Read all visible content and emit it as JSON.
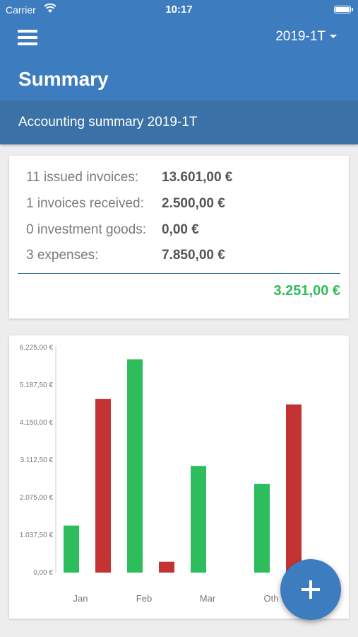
{
  "status_bar": {
    "carrier": "Carrier",
    "time": "10:17"
  },
  "app_bar": {
    "period": "2019-1T",
    "title": "Summary"
  },
  "subheader": {
    "text": "Accounting summary 2019-1T"
  },
  "summary": {
    "rows": [
      {
        "label": "11 issued invoices:",
        "amount": "13.601,00 €"
      },
      {
        "label": "1 invoices received:",
        "amount": "2.500,00 €"
      },
      {
        "label": "0 investment goods:",
        "amount": "0,00 €"
      },
      {
        "label": "3 expenses:",
        "amount": "7.850,00 €"
      }
    ],
    "total": "3.251,00 €"
  },
  "colors": {
    "income": "#2ebd5c",
    "expense": "#c43333",
    "accent": "#3e7cc0"
  },
  "chart_data": {
    "type": "bar",
    "categories": [
      "Jan",
      "Feb",
      "Mar",
      "Oth"
    ],
    "series": [
      {
        "color": "#2ebd5c",
        "values": [
          1300,
          5900,
          2950,
          2450
        ]
      },
      {
        "color": "#c43333",
        "values": [
          4800,
          300,
          0,
          4650
        ]
      }
    ],
    "yticks": [
      "0,00 €",
      "1.037,50 €",
      "2.075,00 €",
      "3.112,50 €",
      "4.150,00 €",
      "5.187,50 €",
      "6.225,00 €"
    ],
    "ylim": [
      0,
      6225
    ]
  }
}
